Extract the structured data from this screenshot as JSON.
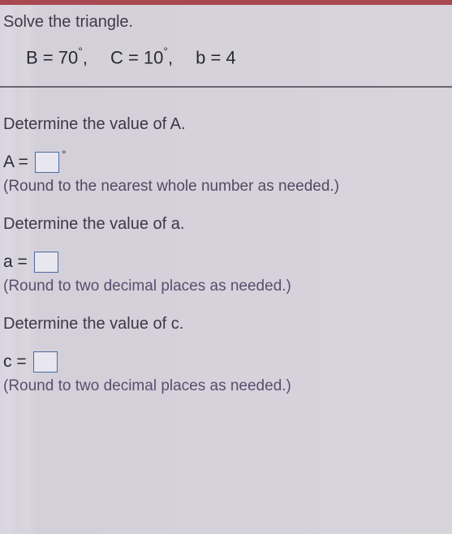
{
  "top": {
    "instruction": "Solve the triangle.",
    "given_B": "B = 70",
    "given_C": "C = 10",
    "given_b": "b = 4",
    "degree": "°",
    "comma": ","
  },
  "qA": {
    "prompt": "Determine the value of A.",
    "var": "A =",
    "degree": "°",
    "hint": "(Round to the nearest whole number as needed.)"
  },
  "qa_lower": {
    "prompt": "Determine the value of a.",
    "var": "a =",
    "hint": "(Round to two decimal places as needed.)"
  },
  "qc": {
    "prompt": "Determine the value of c.",
    "var": "c =",
    "hint": "(Round to two decimal places as needed.)"
  },
  "colors": {
    "top_bar": "#a84850",
    "text": "#3a3642",
    "input_border": "#4a6aa0",
    "divider": "#6a6672",
    "background": "#d6d2dc"
  }
}
